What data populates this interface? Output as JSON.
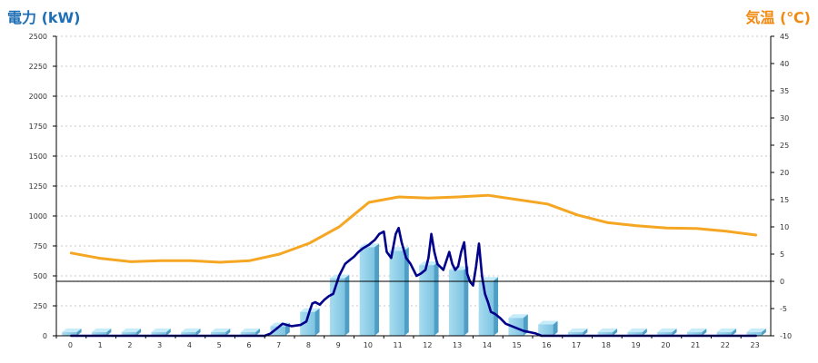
{
  "chart_data": {
    "type": "bar",
    "left_axis_title": "電力 (kW)",
    "right_axis_title": "気温 (℃)",
    "x_ticks": [
      "0",
      "1",
      "2",
      "3",
      "4",
      "5",
      "6",
      "7",
      "8",
      "9",
      "10",
      "11",
      "12",
      "13",
      "14",
      "15",
      "16",
      "17",
      "18",
      "19",
      "20",
      "21",
      "22",
      "23"
    ],
    "y_left_ticks": [
      "0",
      "250",
      "500",
      "750",
      "1000",
      "1250",
      "1500",
      "1750",
      "2000",
      "2250",
      "2500"
    ],
    "y_right_ticks": [
      "-10",
      "-5",
      "0",
      "5",
      "10",
      "15",
      "20",
      "25",
      "30",
      "35",
      "40",
      "45"
    ],
    "ylim_left": [
      0,
      2500
    ],
    "ylim_right": [
      -10,
      45
    ],
    "grid": true,
    "series": [
      {
        "kind": "bar",
        "axis": "left",
        "color": "#87cce8",
        "values": [
          30,
          30,
          30,
          30,
          30,
          30,
          30,
          80,
          200,
          480,
          740,
          710,
          590,
          550,
          460,
          150,
          95,
          30,
          30,
          30,
          30,
          30,
          30,
          30
        ]
      },
      {
        "kind": "line",
        "axis": "left",
        "color": "#00008b",
        "x": [
          0,
          1,
          2,
          3,
          4,
          5,
          6,
          6.5,
          6.7,
          6.9,
          7.1,
          7.4,
          7.7,
          7.9,
          8.0,
          8.1,
          8.2,
          8.35,
          8.5,
          8.65,
          8.8,
          9.0,
          9.1,
          9.2,
          9.35,
          9.5,
          9.65,
          9.8,
          10.0,
          10.1,
          10.2,
          10.35,
          10.5,
          10.6,
          10.75,
          10.9,
          11.0,
          11.1,
          11.25,
          11.4,
          11.6,
          11.75,
          11.9,
          12.0,
          12.1,
          12.2,
          12.3,
          12.5,
          12.7,
          12.8,
          12.9,
          13.0,
          13.1,
          13.2,
          13.3,
          13.4,
          13.5,
          13.6,
          13.7,
          13.8,
          13.9,
          14.0,
          14.1,
          14.25,
          14.4,
          14.6,
          14.8,
          15.0,
          15.2,
          15.4,
          15.6,
          15.8,
          16.0,
          16.2,
          16.5,
          17,
          18,
          19,
          20,
          21,
          22,
          23
        ],
        "values": [
          0,
          0,
          0,
          0,
          0,
          0,
          0,
          0,
          20,
          60,
          100,
          80,
          90,
          120,
          200,
          270,
          280,
          260,
          300,
          330,
          350,
          500,
          550,
          600,
          630,
          660,
          700,
          730,
          760,
          780,
          800,
          850,
          870,
          700,
          650,
          850,
          900,
          780,
          650,
          600,
          500,
          520,
          550,
          650,
          850,
          700,
          600,
          550,
          700,
          600,
          550,
          580,
          700,
          780,
          520,
          450,
          420,
          580,
          770,
          500,
          350,
          280,
          200,
          180,
          150,
          100,
          80,
          60,
          40,
          30,
          20,
          0,
          0,
          0,
          0,
          0,
          0,
          0,
          0,
          0,
          0,
          0
        ]
      },
      {
        "kind": "line",
        "axis": "right",
        "color": "#f5a623",
        "values": [
          5.2,
          4.2,
          3.6,
          3.8,
          3.8,
          3.5,
          3.8,
          5.0,
          7.0,
          10.0,
          14.5,
          15.5,
          15.3,
          15.5,
          15.8,
          15.0,
          14.2,
          12.2,
          10.8,
          10.2,
          9.8,
          9.7,
          9.2,
          8.5
        ]
      }
    ]
  }
}
